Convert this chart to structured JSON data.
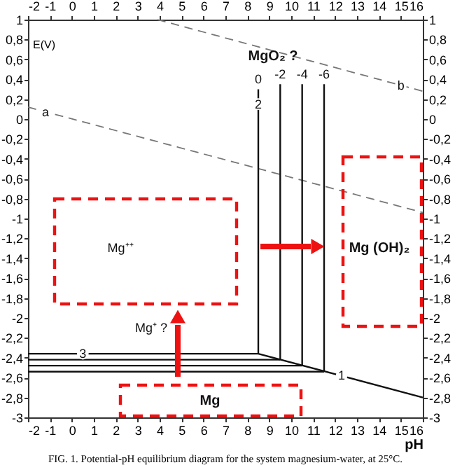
{
  "chart_data": {
    "type": "line",
    "xlabel": "pH",
    "ylabel": "E(V)",
    "xlim": [
      -2,
      16
    ],
    "xticks": [
      -2,
      -1,
      0,
      1,
      2,
      3,
      4,
      5,
      6,
      7,
      8,
      9,
      10,
      11,
      12,
      13,
      14,
      15,
      16
    ],
    "x2lim": [
      -2,
      16
    ],
    "x2ticks": [
      -2,
      -1,
      0,
      1,
      2,
      3,
      4,
      5,
      6,
      7,
      8,
      9,
      10,
      11,
      12,
      13,
      14,
      15,
      16
    ],
    "ylim": [
      -3,
      1
    ],
    "yticks": [
      {
        "value": -3,
        "label": "-3"
      },
      {
        "value": -2.8,
        "label": "-2,8"
      },
      {
        "value": -2.6,
        "label": "-2,6"
      },
      {
        "value": -2.4,
        "label": "-2,4"
      },
      {
        "value": -2.2,
        "label": "-2,2"
      },
      {
        "value": -2,
        "label": "-2"
      },
      {
        "value": -1.8,
        "label": "-1,8"
      },
      {
        "value": -1.6,
        "label": "-1,6"
      },
      {
        "value": -1.4,
        "label": "-1,4"
      },
      {
        "value": -1.2,
        "label": "-1,2"
      },
      {
        "value": -1,
        "label": "-1"
      },
      {
        "value": -0.8,
        "label": "-0,8"
      },
      {
        "value": -0.6,
        "label": "-0,6"
      },
      {
        "value": -0.4,
        "label": "-0,4"
      },
      {
        "value": -0.2,
        "label": "-0,2"
      },
      {
        "value": 0,
        "label": "0"
      },
      {
        "value": 0.2,
        "label": "0,2"
      },
      {
        "value": 0.4,
        "label": "0,4"
      },
      {
        "value": 0.6,
        "label": "0,6"
      },
      {
        "value": 0.8,
        "label": "0,8"
      },
      {
        "value": 1,
        "label": "1"
      }
    ],
    "y2lim": [
      -3,
      1
    ],
    "y2ticks": [
      {
        "value": -3,
        "label": "-3"
      },
      {
        "value": -2.8,
        "label": "-2,8"
      },
      {
        "value": -2.6,
        "label": "-2,6"
      },
      {
        "value": -2.4,
        "label": "-2,4"
      },
      {
        "value": -2.2,
        "label": "-2,2"
      },
      {
        "value": -2,
        "label": "-2"
      },
      {
        "value": -1.8,
        "label": "-1,8"
      },
      {
        "value": -1.6,
        "label": "-1,6"
      },
      {
        "value": -1.4,
        "label": "-1,4"
      },
      {
        "value": -1.2,
        "label": "-1,2"
      },
      {
        "value": -1,
        "label": "-1"
      },
      {
        "value": -0.8,
        "label": "-0,8"
      },
      {
        "value": -0.6,
        "label": "-0,6"
      },
      {
        "value": -0.4,
        "label": "-0,4"
      },
      {
        "value": -0.2,
        "label": "-0,2"
      },
      {
        "value": 0,
        "label": "0"
      },
      {
        "value": 0.2,
        "label": "0,2"
      },
      {
        "value": 0.4,
        "label": "0,4"
      },
      {
        "value": 0.6,
        "label": "0,6"
      },
      {
        "value": 0.8,
        "label": "0,8"
      },
      {
        "value": 1,
        "label": "1"
      }
    ],
    "grid": false,
    "marker": "none",
    "series": [
      {
        "color": "#777777",
        "line_style": "dashed",
        "x": [
          -2,
          16
        ],
        "values": [
          0.12,
          -0.94
        ]
      },
      {
        "color": "#777777",
        "line_style": "dashed",
        "x": [
          3.9,
          16
        ],
        "values": [
          1.0,
          0.28
        ]
      },
      {
        "color": "#111111",
        "line_style": "solid",
        "x": [
          8.5,
          8.5
        ],
        "values": [
          0.3,
          -2.36
        ]
      },
      {
        "color": "#111111",
        "line_style": "solid",
        "x": [
          9.5,
          9.5
        ],
        "values": [
          0.35,
          -2.42
        ]
      },
      {
        "color": "#111111",
        "line_style": "solid",
        "x": [
          10.5,
          10.5
        ],
        "values": [
          0.35,
          -2.48
        ]
      },
      {
        "color": "#111111",
        "line_style": "solid",
        "x": [
          11.5,
          11.5
        ],
        "values": [
          0.35,
          -2.54
        ]
      },
      {
        "color": "#111111",
        "line_style": "solid",
        "x": [
          -2,
          8.5,
          16
        ],
        "values": [
          -2.36,
          -2.36,
          -2.8
        ]
      },
      {
        "color": "#111111",
        "line_style": "solid",
        "x": [
          -2,
          9.5
        ],
        "values": [
          -2.42,
          -2.42
        ]
      },
      {
        "color": "#111111",
        "line_style": "solid",
        "x": [
          -2,
          10.5
        ],
        "values": [
          -2.48,
          -2.48
        ]
      },
      {
        "color": "#111111",
        "line_style": "solid",
        "x": [
          -2,
          11.5
        ],
        "values": [
          -2.54,
          -2.54
        ]
      }
    ],
    "annotations": [
      "FIG. 1. Potential-pH equilibrium diagram for the system magnesium-water, at 25°C.",
      "MgO₂ ?",
      "Mg⁺⁺",
      "Mg (OH)₂",
      "Mg⁺ ?",
      "Mg",
      {
        "text": "a",
        "x": -1.2,
        "y": 0.07
      },
      {
        "text": "b",
        "x": 15.0,
        "y": 0.34
      },
      {
        "text": "1",
        "x": 12.3,
        "y": -2.58
      },
      {
        "text": "2",
        "x": 8.5,
        "y": 0.15
      },
      {
        "text": "3",
        "x": 0.5,
        "y": -2.36
      },
      {
        "text": "0",
        "x": 8.5,
        "y": 0.4
      },
      {
        "text": "-2",
        "x": 9.5,
        "y": 0.45
      },
      {
        "text": "-4",
        "x": 10.5,
        "y": 0.45
      },
      {
        "text": "-6",
        "x": 11.5,
        "y": 0.45
      }
    ]
  }
}
